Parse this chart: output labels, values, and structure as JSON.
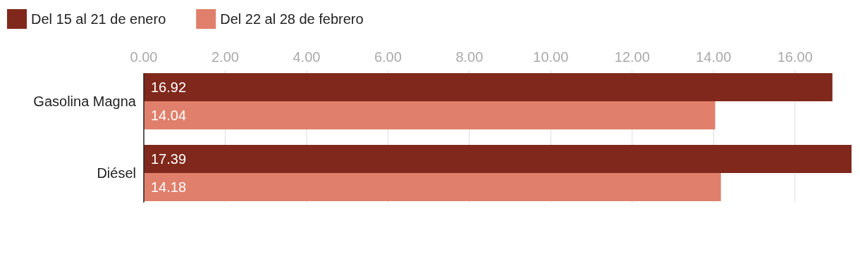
{
  "chart_data": {
    "type": "bar",
    "orientation": "horizontal",
    "categories": [
      "Gasolina Magna",
      "Diésel"
    ],
    "series": [
      {
        "name": "Del 15 al 21 de enero",
        "color": "#80281c",
        "values": [
          16.92,
          17.39
        ]
      },
      {
        "name": "Del 22 al 28 de febrero",
        "color": "#e07f6b",
        "values": [
          14.04,
          14.18
        ]
      }
    ],
    "xlim": [
      0,
      17.39
    ],
    "xticks": [
      {
        "value": 0,
        "label": "0.00"
      },
      {
        "value": 2,
        "label": "2.00"
      },
      {
        "value": 4,
        "label": "4.00"
      },
      {
        "value": 6,
        "label": "6.00"
      },
      {
        "value": 8,
        "label": "8.00"
      },
      {
        "value": 10,
        "label": "10.00"
      },
      {
        "value": 12,
        "label": "12.00"
      },
      {
        "value": 14,
        "label": "14.00"
      },
      {
        "value": 16,
        "label": "16.00"
      }
    ],
    "grid": "x",
    "legend": "top left",
    "data_labels": true
  }
}
